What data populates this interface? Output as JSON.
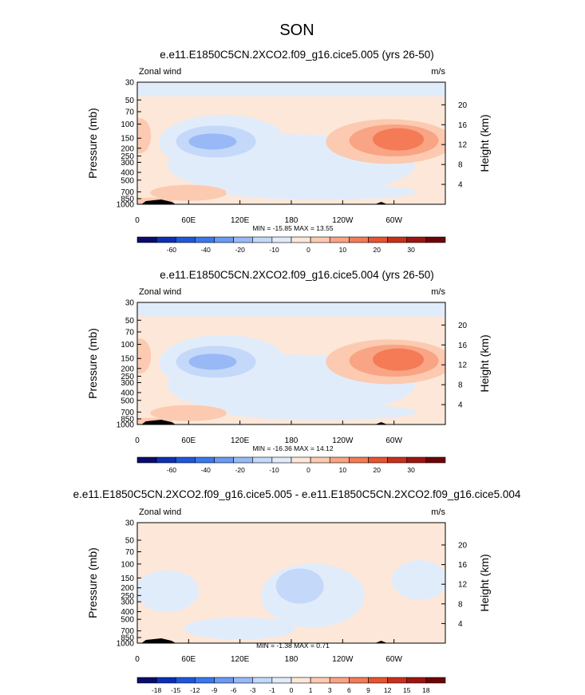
{
  "figure": {
    "title": "SON",
    "yticks_pressure": [
      "30",
      "50",
      "70",
      "100",
      "150",
      "200",
      "250",
      "300",
      "400",
      "500",
      "700",
      "850",
      "1000"
    ],
    "yticks_height": [
      "20",
      "16",
      "12",
      "8",
      "4"
    ],
    "xticks": [
      "0",
      "60E",
      "120E",
      "180",
      "120W",
      "60W"
    ]
  },
  "chart_data": [
    {
      "type": "heatmap",
      "title": "e.e11.E1850C5CN.2XCO2.f09_g16.cice5.005 (yrs 26-50)",
      "left_label": "Zonal wind",
      "right_label": "m/s",
      "ylabel": "Pressure (mb)",
      "ylabel_right": "Height (km)",
      "stats": "MIN = -15.85  MAX =  13.55",
      "min": -15.85,
      "max": 13.55,
      "xlim": [
        0,
        360
      ],
      "ylim": [
        1000,
        30
      ],
      "yscale": "log",
      "colorbar_labels": [
        "-60",
        "-40",
        "-20",
        "-10",
        "0",
        "10",
        "20",
        "30"
      ],
      "colorbar_colors": [
        "#0a0b6b",
        "#0b2fb5",
        "#1f56dc",
        "#3a78ee",
        "#6a9af3",
        "#98b9f6",
        "#c4d8f9",
        "#e1ecfb",
        "#fde7d8",
        "#fccab0",
        "#f9a484",
        "#f47b56",
        "#e8542f",
        "#c9301c",
        "#9e1411",
        "#6e0307"
      ],
      "features": [
        {
          "kind": "westerly-max",
          "lon": 290,
          "pressure": 150,
          "value": 13.55
        },
        {
          "kind": "easterly-min",
          "lon": 85,
          "pressure": 170,
          "value": -15.85
        }
      ]
    },
    {
      "type": "heatmap",
      "title": "e.e11.E1850C5CN.2XCO2.f09_g16.cice5.004 (yrs 26-50)",
      "left_label": "Zonal wind",
      "right_label": "m/s",
      "ylabel": "Pressure (mb)",
      "ylabel_right": "Height (km)",
      "stats": "MIN = -16.36  MAX =  14.12",
      "min": -16.36,
      "max": 14.12,
      "xlim": [
        0,
        360
      ],
      "ylim": [
        1000,
        30
      ],
      "yscale": "log",
      "colorbar_labels": [
        "-60",
        "-40",
        "-20",
        "-10",
        "0",
        "10",
        "20",
        "30"
      ],
      "colorbar_colors": [
        "#0a0b6b",
        "#0b2fb5",
        "#1f56dc",
        "#3a78ee",
        "#6a9af3",
        "#98b9f6",
        "#c4d8f9",
        "#e1ecfb",
        "#fde7d8",
        "#fccab0",
        "#f9a484",
        "#f47b56",
        "#e8542f",
        "#c9301c",
        "#9e1411",
        "#6e0307"
      ],
      "features": [
        {
          "kind": "westerly-max",
          "lon": 290,
          "pressure": 150,
          "value": 14.12
        },
        {
          "kind": "easterly-min",
          "lon": 95,
          "pressure": 160,
          "value": -16.36
        }
      ]
    },
    {
      "type": "heatmap",
      "title": "e.e11.E1850C5CN.2XCO2.f09_g16.cice5.005 - e.e11.E1850C5CN.2XCO2.f09_g16.cice5.004",
      "left_label": "Zonal wind",
      "right_label": "m/s",
      "ylabel": "Pressure (mb)",
      "ylabel_right": "Height (km)",
      "stats": "MIN = -1.38  MAX =  0.71",
      "min": -1.38,
      "max": 0.71,
      "xlim": [
        0,
        360
      ],
      "ylim": [
        1000,
        30
      ],
      "yscale": "log",
      "colorbar_labels": [
        "-18",
        "-15",
        "-12",
        "-9",
        "-6",
        "-3",
        "-1",
        "0",
        "1",
        "3",
        "6",
        "9",
        "12",
        "15",
        "18"
      ],
      "colorbar_colors": [
        "#0a0b6b",
        "#0b2fb5",
        "#1f56dc",
        "#3a78ee",
        "#6a9af3",
        "#98b9f6",
        "#c4d8f9",
        "#e1ecfb",
        "#fde7d8",
        "#fccab0",
        "#f9a484",
        "#f47b56",
        "#e8542f",
        "#c9301c",
        "#9e1411",
        "#6e0307"
      ],
      "features": [
        {
          "kind": "difference-min",
          "lon": 190,
          "pressure": 190,
          "value": -1.38
        }
      ]
    }
  ]
}
